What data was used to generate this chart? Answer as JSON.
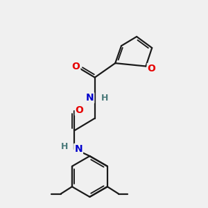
{
  "bg_color": "#f0f0f0",
  "bond_color": "#1a1a1a",
  "bond_width": 1.6,
  "atom_colors": {
    "O": "#e60000",
    "N": "#0000cc",
    "C": "#1a1a1a",
    "H": "#4a7a7a"
  },
  "font_size_atom": 10,
  "font_size_h": 9,
  "xlim": [
    0,
    10
  ],
  "ylim": [
    0,
    10
  ]
}
